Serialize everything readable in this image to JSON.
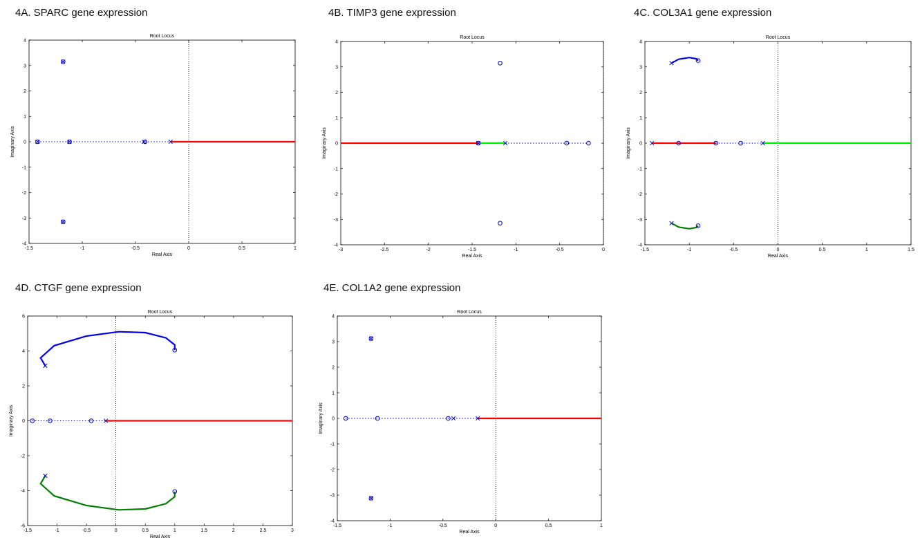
{
  "chart_data": [
    {
      "id": "A",
      "type": "scatter",
      "heading": "4A. SPARC gene expression",
      "title": "Root Locus",
      "xlabel": "Real Axis",
      "ylabel": "Imaginary Axis",
      "xlim": [
        -1.5,
        1
      ],
      "ylim": [
        -4,
        4
      ],
      "xticks": [
        -1.5,
        -1,
        -0.5,
        0,
        0.5,
        1
      ],
      "xtick_labels": [
        "-1.5",
        "-1",
        "-0.5",
        "0",
        "0.5",
        "1"
      ],
      "yticks": [
        -4,
        -3,
        -2,
        -1,
        0,
        1,
        2,
        3,
        4
      ],
      "ytick_labels": [
        "-4",
        "-3",
        "-2",
        "-1",
        "0",
        "1",
        "2",
        "3",
        "4"
      ],
      "poles": [
        [
          -1.18,
          3.15
        ],
        [
          -1.18,
          -3.15
        ],
        [
          -1.42,
          0
        ],
        [
          -1.12,
          0
        ],
        [
          -0.42,
          0
        ],
        [
          -0.17,
          0
        ]
      ],
      "zeros": [
        [
          -1.18,
          3.15
        ],
        [
          -1.18,
          -3.15
        ],
        [
          -1.42,
          0
        ],
        [
          -1.12,
          0
        ],
        [
          -0.41,
          0
        ]
      ],
      "series": [
        {
          "color": "#ff0000",
          "points": [
            [
              -0.17,
              0
            ],
            [
              1,
              0
            ]
          ]
        },
        {
          "color": "#0000cc",
          "dotted": true,
          "points": [
            [
              -1.42,
              0
            ],
            [
              -0.17,
              0
            ]
          ]
        }
      ]
    },
    {
      "id": "B",
      "type": "scatter",
      "heading": "4B. TIMP3 gene expression",
      "title": "Root Locus",
      "xlabel": "Real Axis",
      "ylabel": "Imaginary Axis",
      "xlim": [
        -3,
        0
      ],
      "ylim": [
        -4,
        4
      ],
      "xticks": [
        -3,
        -2.5,
        -2,
        -1.5,
        -1,
        -0.5,
        0
      ],
      "xtick_labels": [
        "-3",
        "-2.5",
        "-2",
        "-1.5",
        "-1",
        "-0.5",
        "0"
      ],
      "yticks": [
        -4,
        -3,
        -2,
        -1,
        0,
        1,
        2,
        3,
        4
      ],
      "ytick_labels": [
        "-4",
        "-3",
        "-2",
        "-1",
        "0",
        "1",
        "2",
        "3",
        "4"
      ],
      "poles": [
        [
          -1.43,
          0
        ],
        [
          -1.12,
          0
        ]
      ],
      "zeros": [
        [
          -1.18,
          3.15
        ],
        [
          -1.18,
          -3.15
        ],
        [
          -1.43,
          0
        ],
        [
          -0.42,
          0
        ],
        [
          -0.17,
          0
        ]
      ],
      "series": [
        {
          "color": "#ff0000",
          "points": [
            [
              -3,
              0
            ],
            [
              -1.43,
              0
            ]
          ]
        },
        {
          "color": "#00ee00",
          "points": [
            [
              -1.43,
              0
            ],
            [
              -1.12,
              0
            ]
          ]
        },
        {
          "color": "#0000cc",
          "dotted": true,
          "points": [
            [
              -1.12,
              0
            ],
            [
              -0.17,
              0
            ]
          ]
        }
      ]
    },
    {
      "id": "C",
      "type": "scatter",
      "heading": "4C. COL3A1 gene expression",
      "title": "Root Locus",
      "xlabel": "Real Axis",
      "ylabel": "Imaginary Axis",
      "xlim": [
        -1.5,
        1.5
      ],
      "ylim": [
        -4,
        4
      ],
      "xticks": [
        -1.5,
        -1,
        -0.5,
        0,
        0.5,
        1,
        1.5
      ],
      "xtick_labels": [
        "-1.5",
        "-1",
        "-0.5",
        "0",
        "0.5",
        "1",
        "1.5"
      ],
      "yticks": [
        -4,
        -3,
        -2,
        -1,
        0,
        1,
        2,
        3,
        4
      ],
      "ytick_labels": [
        "-4",
        "-3",
        "-2",
        "-1",
        "0",
        "1",
        "2",
        "3",
        "4"
      ],
      "poles": [
        [
          -1.2,
          3.15
        ],
        [
          -1.2,
          -3.15
        ],
        [
          -1.42,
          0
        ],
        [
          -0.17,
          0
        ]
      ],
      "zeros": [
        [
          -0.9,
          3.25
        ],
        [
          -0.9,
          -3.25
        ],
        [
          -1.12,
          0
        ],
        [
          -0.7,
          0
        ],
        [
          -0.42,
          0
        ]
      ],
      "series": [
        {
          "color": "#0000ee",
          "points": [
            [
              -1.2,
              3.15
            ],
            [
              -1.12,
              3.3
            ],
            [
              -1.0,
              3.37
            ],
            [
              -0.92,
              3.32
            ],
            [
              -0.9,
              3.25
            ]
          ]
        },
        {
          "color": "#008000",
          "points": [
            [
              -1.2,
              -3.15
            ],
            [
              -1.12,
              -3.3
            ],
            [
              -1.0,
              -3.37
            ],
            [
              -0.92,
              -3.32
            ],
            [
              -0.9,
              -3.25
            ]
          ]
        },
        {
          "color": "#ff0000",
          "points": [
            [
              -1.42,
              0
            ],
            [
              -0.7,
              0
            ]
          ]
        },
        {
          "color": "#00ee00",
          "points": [
            [
              -0.17,
              0
            ],
            [
              1.5,
              0
            ]
          ]
        },
        {
          "color": "#0000cc",
          "dotted": true,
          "points": [
            [
              -0.7,
              0
            ],
            [
              -0.17,
              0
            ]
          ]
        }
      ]
    },
    {
      "id": "D",
      "type": "scatter",
      "heading": "4D. CTGF gene expression",
      "title": "Root Locus",
      "xlabel": "Real Axis",
      "ylabel": "Imaginary Axis",
      "xlim": [
        -1.5,
        3
      ],
      "ylim": [
        -6,
        6
      ],
      "xticks": [
        -1.5,
        -1,
        -0.5,
        0,
        0.5,
        1,
        1.5,
        2,
        2.5,
        3
      ],
      "xtick_labels": [
        "-1.5",
        "-1",
        "-0.5",
        "0",
        "0.5",
        "1",
        "1.5",
        "2",
        "2.5",
        "3"
      ],
      "yticks": [
        -6,
        -4,
        -2,
        0,
        2,
        4,
        6
      ],
      "ytick_labels": [
        "-6",
        "-4",
        "-2",
        "0",
        "2",
        "4",
        "6"
      ],
      "poles": [
        [
          -1.2,
          3.15
        ],
        [
          -1.2,
          -3.15
        ],
        [
          -0.17,
          0
        ]
      ],
      "zeros": [
        [
          1.0,
          4.05
        ],
        [
          1.0,
          -4.05
        ],
        [
          -1.42,
          0
        ],
        [
          -1.12,
          0
        ],
        [
          -0.42,
          0
        ]
      ],
      "series": [
        {
          "color": "#0000ee",
          "points": [
            [
              -1.2,
              3.15
            ],
            [
              -1.28,
              3.6
            ],
            [
              -1.05,
              4.3
            ],
            [
              -0.5,
              4.85
            ],
            [
              0.05,
              5.1
            ],
            [
              0.5,
              5.05
            ],
            [
              0.85,
              4.75
            ],
            [
              1.0,
              4.35
            ],
            [
              1.0,
              4.05
            ]
          ]
        },
        {
          "color": "#008000",
          "points": [
            [
              -1.2,
              -3.15
            ],
            [
              -1.28,
              -3.6
            ],
            [
              -1.05,
              -4.3
            ],
            [
              -0.5,
              -4.85
            ],
            [
              0.05,
              -5.1
            ],
            [
              0.5,
              -5.05
            ],
            [
              0.85,
              -4.75
            ],
            [
              1.0,
              -4.35
            ],
            [
              1.0,
              -4.05
            ]
          ]
        },
        {
          "color": "#ff0000",
          "points": [
            [
              -0.17,
              0
            ],
            [
              3,
              0
            ]
          ]
        },
        {
          "color": "#0000cc",
          "dotted": true,
          "points": [
            [
              -1.42,
              0
            ],
            [
              -0.17,
              0
            ]
          ]
        }
      ]
    },
    {
      "id": "E",
      "type": "scatter",
      "heading": "4E. COL1A2 gene expression",
      "title": "Root Locus",
      "xlabel": "Real Axis",
      "ylabel": "Imaginary Axis",
      "xlim": [
        -1.5,
        1
      ],
      "ylim": [
        -4,
        4
      ],
      "xticks": [
        -1.5,
        -1,
        -0.5,
        0,
        0.5,
        1
      ],
      "xtick_labels": [
        "-1.5",
        "-1",
        "-0.5",
        "0",
        "0.5",
        "1"
      ],
      "yticks": [
        -4,
        -3,
        -2,
        -1,
        0,
        1,
        2,
        3,
        4
      ],
      "ytick_labels": [
        "-4",
        "-3",
        "-2",
        "-1",
        "0",
        "1",
        "2",
        "3",
        "4"
      ],
      "poles": [
        [
          -1.18,
          3.12
        ],
        [
          -1.18,
          -3.12
        ],
        [
          -0.4,
          0
        ],
        [
          -0.17,
          0
        ]
      ],
      "zeros": [
        [
          -1.18,
          3.12
        ],
        [
          -1.18,
          -3.12
        ],
        [
          -1.42,
          0
        ],
        [
          -1.12,
          0
        ],
        [
          -0.45,
          0
        ]
      ],
      "series": [
        {
          "color": "#ff0000",
          "points": [
            [
              -0.17,
              0
            ],
            [
              1,
              0
            ]
          ]
        },
        {
          "color": "#0000cc",
          "dotted": true,
          "points": [
            [
              -1.42,
              0
            ],
            [
              -0.17,
              0
            ]
          ]
        }
      ]
    }
  ]
}
